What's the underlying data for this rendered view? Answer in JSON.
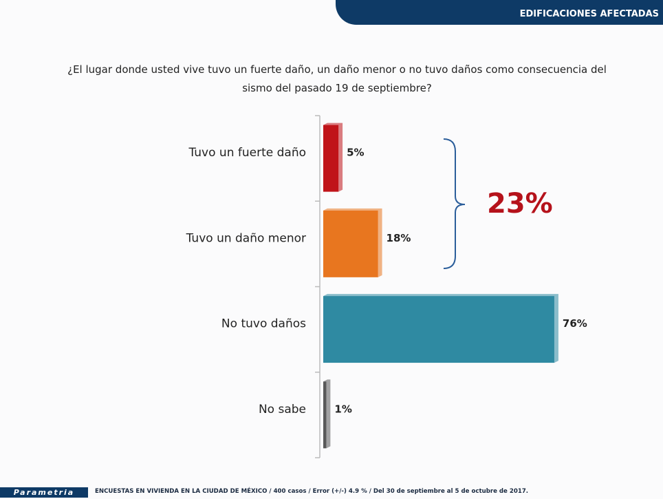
{
  "header": "EDIFICACIONES AFECTADAS",
  "chart_data": {
    "type": "bar",
    "orientation": "horizontal",
    "title": "¿El lugar donde usted vive tuvo un fuerte daño, un daño menor o no tuvo daños como consecuencia del sismo del pasado 19 de septiembre?",
    "categories": [
      "Tuvo un fuerte daño",
      "Tuvo un daño menor",
      "No tuvo daños",
      "No sabe"
    ],
    "values": [
      5,
      18,
      76,
      1
    ],
    "value_labels": [
      "5%",
      "18%",
      "76%",
      "1%"
    ],
    "colors": [
      "#c01419",
      "#e8761f",
      "#2f8aa2",
      "#595959"
    ],
    "annotation": "23%",
    "annotation_color": "#b5121b"
  },
  "footer": {
    "brand": "Parametria",
    "note": "ENCUESTAS EN VIVIENDA EN LA CIUDAD DE MÉXICO / 400 casos / Error (+/-) 4.9 % / Del 30 de septiembre al 5 de octubre de 2017."
  }
}
